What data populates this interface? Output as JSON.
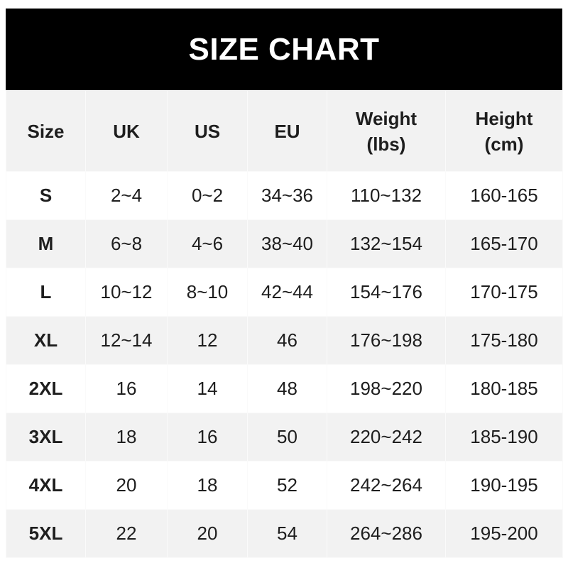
{
  "title": "SIZE CHART",
  "headers": [
    {
      "line1": "Size",
      "line2": ""
    },
    {
      "line1": "UK",
      "line2": ""
    },
    {
      "line1": "US",
      "line2": ""
    },
    {
      "line1": "EU",
      "line2": ""
    },
    {
      "line1": "Weight",
      "line2": "(lbs)"
    },
    {
      "line1": "Height",
      "line2": "(cm)"
    }
  ],
  "rows": [
    [
      "S",
      "2~4",
      "0~2",
      "34~36",
      "110~132",
      "160-165"
    ],
    [
      "M",
      "6~8",
      "4~6",
      "38~40",
      "132~154",
      "165-170"
    ],
    [
      "L",
      "10~12",
      "8~10",
      "42~44",
      "154~176",
      "170-175"
    ],
    [
      "XL",
      "12~14",
      "12",
      "46",
      "176~198",
      "175-180"
    ],
    [
      "2XL",
      "16",
      "14",
      "48",
      "198~220",
      "180-185"
    ],
    [
      "3XL",
      "18",
      "16",
      "50",
      "220~242",
      "185-190"
    ],
    [
      "4XL",
      "20",
      "18",
      "52",
      "242~264",
      "190-195"
    ],
    [
      "5XL",
      "22",
      "20",
      "54",
      "264~286",
      "195-200"
    ]
  ],
  "colors": {
    "title_bg": "#000000",
    "title_text": "#ffffff",
    "alt_row": "#f2f2f2"
  }
}
